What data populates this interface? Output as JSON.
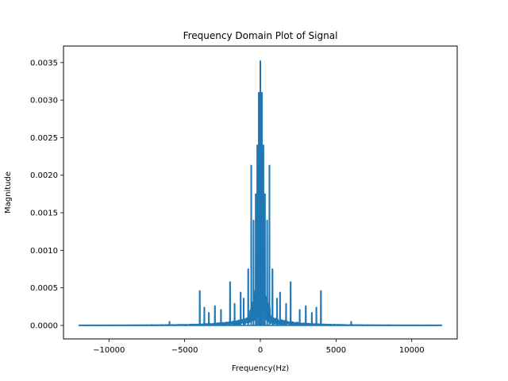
{
  "chart_data": {
    "type": "line",
    "title": "Frequency Domain Plot of Signal",
    "xlabel": "Frequency(Hz)",
    "ylabel": "Magnitude",
    "xlim": [
      -13000,
      13000
    ],
    "ylim": [
      -0.00018,
      0.00372
    ],
    "x_range": [
      -12000,
      12000
    ],
    "x_ticks": [
      -10000,
      -5000,
      0,
      5000,
      10000
    ],
    "x_tick_labels": [
      "−10000",
      "−5000",
      "0",
      "5000",
      "10000"
    ],
    "y_ticks": [
      0.0,
      0.0005,
      0.001,
      0.0015,
      0.002,
      0.0025,
      0.003,
      0.0035
    ],
    "y_tick_labels": [
      "0.0000",
      "0.0005",
      "0.0010",
      "0.0015",
      "0.0020",
      "0.0025",
      "0.0030",
      "0.0035"
    ],
    "grid": false,
    "legend": "none",
    "series": [
      {
        "color": "#1f77b4",
        "peaks": [
          {
            "x": -4000,
            "y": 0.00046
          },
          {
            "x": -3700,
            "y": 0.00024
          },
          {
            "x": -3400,
            "y": 0.00017
          },
          {
            "x": -3000,
            "y": 0.00026
          },
          {
            "x": -2600,
            "y": 0.00021
          },
          {
            "x": -2000,
            "y": 0.00058
          },
          {
            "x": -1700,
            "y": 0.00029
          },
          {
            "x": -1300,
            "y": 0.00044
          },
          {
            "x": -1100,
            "y": 0.00036
          },
          {
            "x": -800,
            "y": 0.00075
          },
          {
            "x": -600,
            "y": 0.00213
          },
          {
            "x": -450,
            "y": 0.0014
          },
          {
            "x": -300,
            "y": 0.00175
          },
          {
            "x": -200,
            "y": 0.0024
          },
          {
            "x": -100,
            "y": 0.0031
          },
          {
            "x": 0,
            "y": 0.00352
          },
          {
            "x": 100,
            "y": 0.0031
          },
          {
            "x": 200,
            "y": 0.0024
          },
          {
            "x": 300,
            "y": 0.00175
          },
          {
            "x": 450,
            "y": 0.0014
          },
          {
            "x": 600,
            "y": 0.00213
          },
          {
            "x": 800,
            "y": 0.00075
          },
          {
            "x": 1100,
            "y": 0.00036
          },
          {
            "x": 1300,
            "y": 0.00044
          },
          {
            "x": 1700,
            "y": 0.00029
          },
          {
            "x": 2000,
            "y": 0.00058
          },
          {
            "x": 2600,
            "y": 0.00021
          },
          {
            "x": 3000,
            "y": 0.00026
          },
          {
            "x": 3400,
            "y": 0.00017
          },
          {
            "x": 3700,
            "y": 0.00024
          },
          {
            "x": 4000,
            "y": 0.00046
          },
          {
            "x": -6000,
            "y": 5e-05
          },
          {
            "x": 6000,
            "y": 5e-05
          }
        ]
      }
    ]
  }
}
